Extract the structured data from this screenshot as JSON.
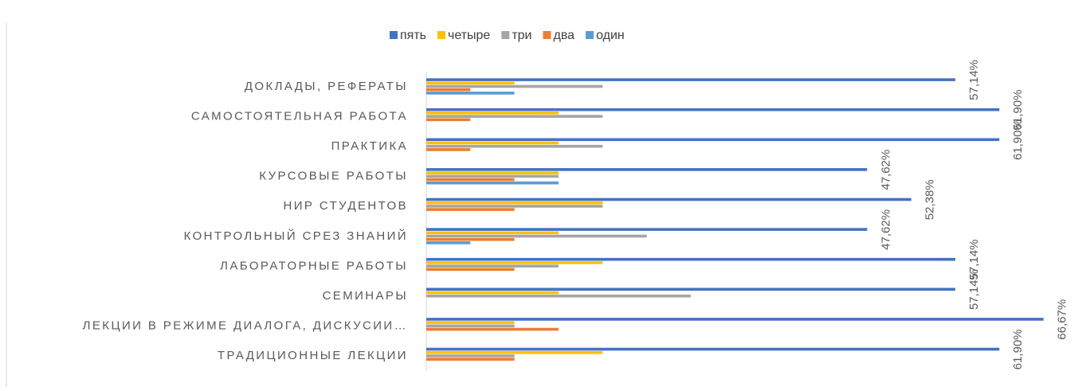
{
  "chart_data": {
    "type": "bar",
    "orientation": "horizontal",
    "categories": [
      "ДОКЛАДЫ, РЕФЕРАТЫ",
      "САМОСТОЯТЕЛЬНАЯ РАБОТА",
      "ПРАКТИКА",
      "КУРСОВЫЕ РАБОТЫ",
      "НИР СТУДЕНТОВ",
      "КОНТРОЛЬНЫЙ СРЕЗ ЗНАНИЙ",
      "ЛАБОРАТОРНЫЕ РАБОТЫ",
      "СЕМИНАРЫ",
      "ЛЕКЦИИ В РЕЖИМЕ ДИАЛОГА, ДИСКУСИИ…",
      "ТРАДИЦИОННЫЕ ЛЕКЦИИ"
    ],
    "series": [
      {
        "name": "пять",
        "color": "#4472c4",
        "values": [
          57.14,
          61.9,
          61.9,
          47.62,
          52.38,
          47.62,
          57.14,
          57.14,
          66.67,
          61.9
        ],
        "value_labels": [
          "57,14%",
          "61,90%",
          "61,90%",
          "47,62%",
          "52,38%",
          "47,62%",
          "57,14%",
          "57,14%",
          "66,67%",
          "61,90%"
        ]
      },
      {
        "name": "четыре",
        "color": "#ffc000",
        "values": [
          9.52,
          14.29,
          14.29,
          14.29,
          19.05,
          14.29,
          19.05,
          14.29,
          9.52,
          19.05
        ]
      },
      {
        "name": "три",
        "color": "#a5a5a5",
        "values": [
          19.05,
          19.05,
          19.05,
          14.29,
          19.05,
          23.81,
          14.29,
          28.57,
          9.52,
          9.52
        ]
      },
      {
        "name": "два",
        "color": "#ed7d31",
        "values": [
          4.76,
          4.76,
          4.76,
          9.52,
          9.52,
          9.52,
          9.52,
          0,
          14.29,
          9.52
        ]
      },
      {
        "name": "один",
        "color": "#5b9bd5",
        "values": [
          9.52,
          0,
          0,
          14.29,
          0,
          4.76,
          0,
          0,
          0,
          0
        ]
      }
    ],
    "xlim": [
      0,
      71
    ],
    "legend": "top"
  }
}
